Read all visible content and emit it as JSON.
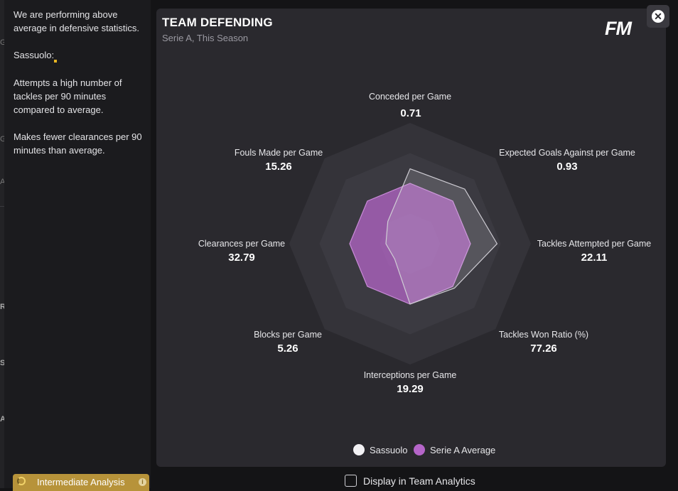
{
  "analysis": {
    "summary": "We are performing above average in defensive statistics.",
    "team_line": "Sassuolo:",
    "point1": "Attempts a high number of tackles per 90 minutes compared to average.",
    "point2": "Makes fewer clearances per 90 minutes than average."
  },
  "analysis_level": {
    "label": "Intermediate Analysis",
    "info_icon": "info-icon"
  },
  "card": {
    "title": "TEAM DEFENDING",
    "subtitle": "Serie A, This Season",
    "logo": "FM",
    "close_icon": "close-icon"
  },
  "chart_data": {
    "type": "radar",
    "axes": [
      {
        "label": "Conceded per Game",
        "value": "0.71"
      },
      {
        "label": "Expected Goals Against per Game",
        "value": "0.93"
      },
      {
        "label": "Tackles Attempted per Game",
        "value": "22.11"
      },
      {
        "label": "Tackles Won Ratio (%)",
        "value": "77.26"
      },
      {
        "label": "Interceptions per Game",
        "value": "19.29"
      },
      {
        "label": "Blocks per Game",
        "value": "5.26"
      },
      {
        "label": "Clearances per Game",
        "value": "32.79"
      },
      {
        "label": "Fouls Made per Game",
        "value": "15.26"
      }
    ],
    "series": [
      {
        "name": "Sassuolo",
        "color": "#e8e6ea",
        "values": [
          0.62,
          0.64,
          0.72,
          0.52,
          0.5,
          0.18,
          0.2,
          0.26
        ]
      },
      {
        "name": "Serie A Average",
        "color": "#b565c9",
        "values": [
          0.5,
          0.5,
          0.5,
          0.5,
          0.5,
          0.5,
          0.5,
          0.5
        ]
      }
    ],
    "rings": 4
  },
  "footer": {
    "checkbox_label": "Display in Team Analytics",
    "checked": false
  }
}
